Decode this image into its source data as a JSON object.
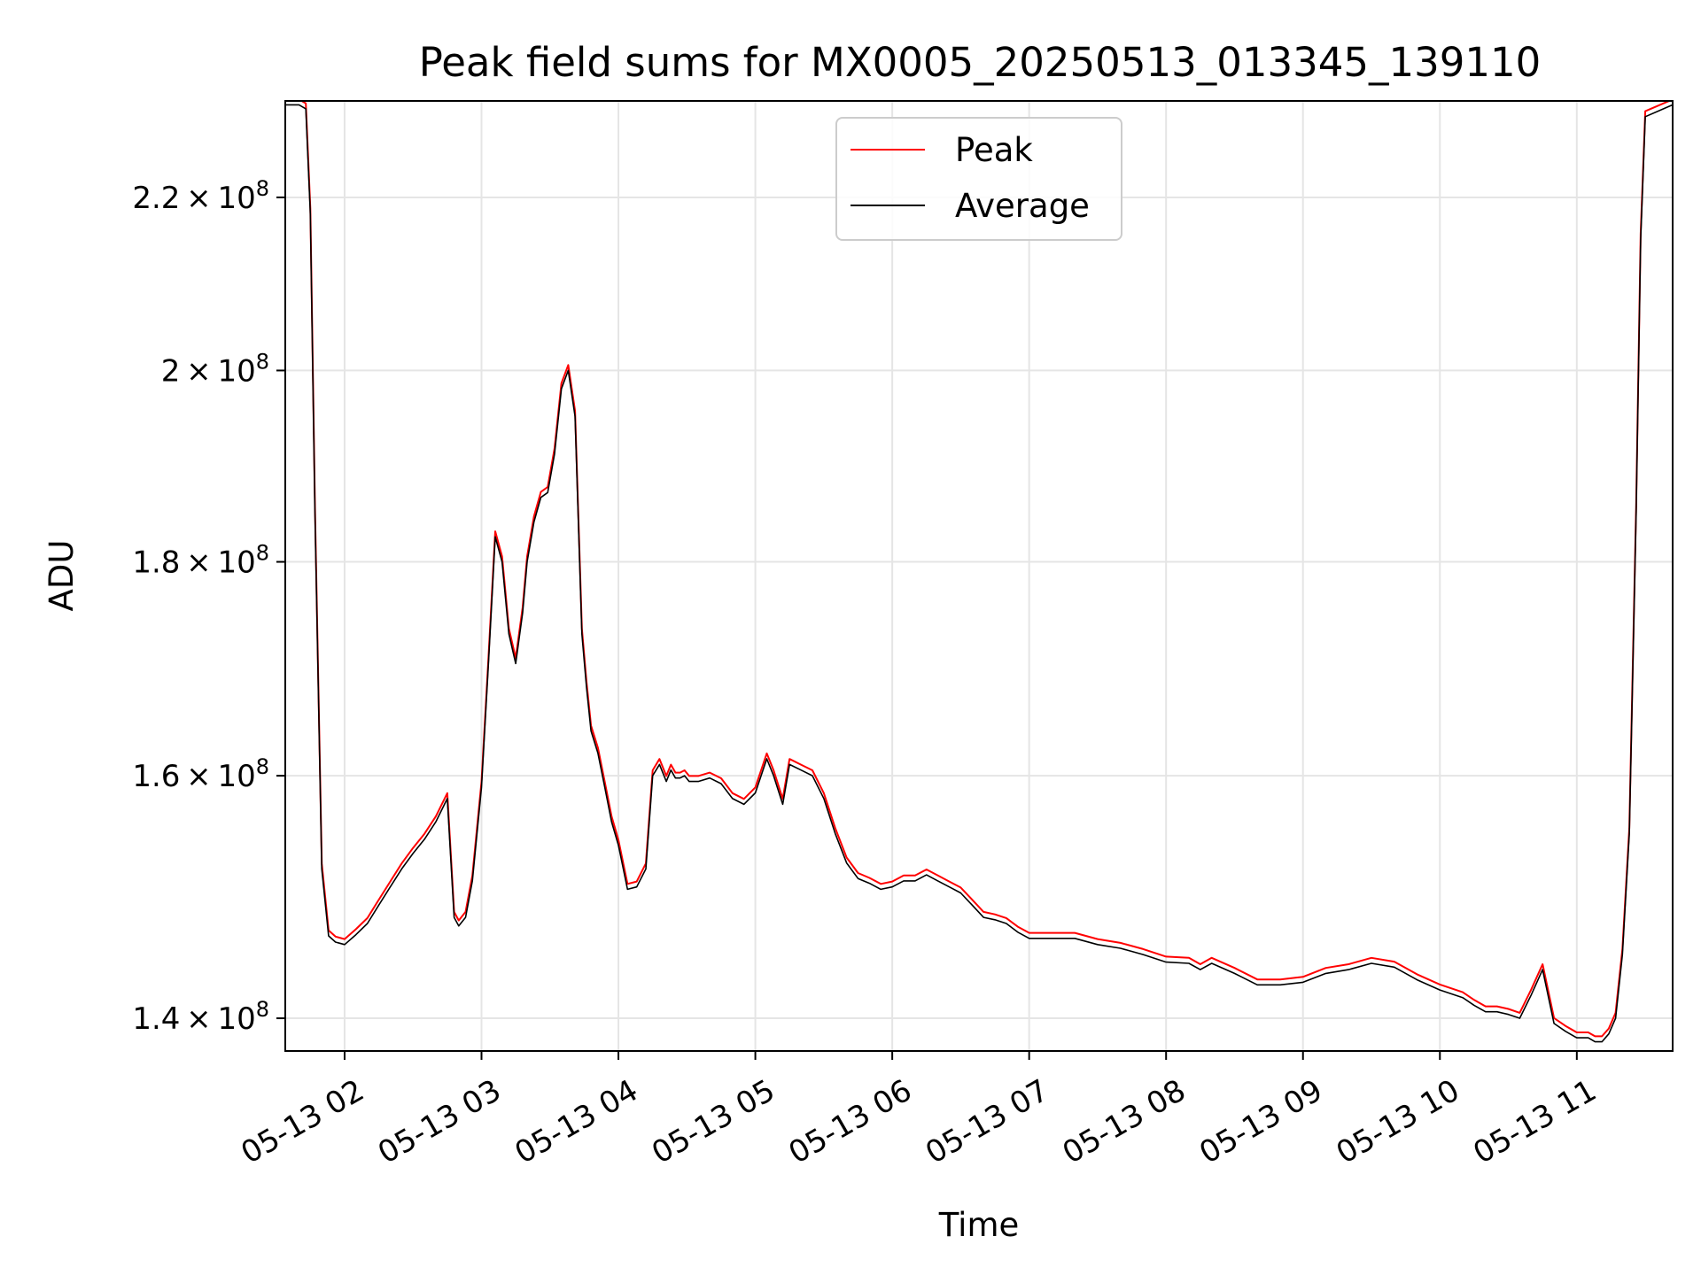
{
  "chart_data": {
    "type": "line",
    "title": "Peak field sums for MX0005_20250513_013345_139110",
    "xlabel": "Time",
    "ylabel": "ADU",
    "y_scale": "log",
    "xlim": [
      "05-13 01:34",
      "05-13 11:42"
    ],
    "ylim": [
      137500000,
      232000000
    ],
    "x_ticks": [
      "05-13 02",
      "05-13 03",
      "05-13 04",
      "05-13 05",
      "05-13 06",
      "05-13 07",
      "05-13 08",
      "05-13 09",
      "05-13 10",
      "05-13 11"
    ],
    "y_ticks": [
      {
        "value": 140000000,
        "mantissa": "1.4",
        "exp": "8"
      },
      {
        "value": 160000000,
        "mantissa": "1.6",
        "exp": "8"
      },
      {
        "value": 180000000,
        "mantissa": "1.8",
        "exp": "8"
      },
      {
        "value": 200000000,
        "mantissa": "2",
        "exp": "8"
      },
      {
        "value": 220000000,
        "mantissa": "2.2",
        "exp": "8"
      }
    ],
    "grid": true,
    "legend": {
      "placement": "upper center"
    },
    "series": [
      {
        "name": "Peak",
        "color": "#ff0000"
      },
      {
        "name": "Average",
        "color": "#000000"
      }
    ],
    "x": [
      "01:34",
      "01:40",
      "01:43",
      "01:45",
      "01:47",
      "01:50",
      "01:53",
      "01:56",
      "02:00",
      "02:05",
      "02:10",
      "02:15",
      "02:20",
      "02:25",
      "02:30",
      "02:35",
      "02:40",
      "02:45",
      "02:48",
      "02:50",
      "02:53",
      "02:56",
      "03:00",
      "03:03",
      "03:06",
      "03:09",
      "03:12",
      "03:15",
      "03:18",
      "03:20",
      "03:23",
      "03:26",
      "03:29",
      "03:32",
      "03:35",
      "03:38",
      "03:41",
      "03:44",
      "03:46",
      "03:48",
      "03:51",
      "03:54",
      "03:57",
      "04:00",
      "04:04",
      "04:08",
      "04:12",
      "04:15",
      "04:18",
      "04:21",
      "04:23",
      "04:25",
      "04:27",
      "04:29",
      "04:31",
      "04:33",
      "04:35",
      "04:40",
      "04:45",
      "04:50",
      "04:55",
      "05:00",
      "05:05",
      "05:08",
      "05:12",
      "05:15",
      "05:20",
      "05:25",
      "05:30",
      "05:35",
      "05:40",
      "05:45",
      "05:50",
      "05:55",
      "06:00",
      "06:05",
      "06:10",
      "06:15",
      "06:20",
      "06:25",
      "06:30",
      "06:35",
      "06:40",
      "06:45",
      "06:50",
      "06:55",
      "07:00",
      "07:10",
      "07:20",
      "07:30",
      "07:40",
      "07:50",
      "08:00",
      "08:10",
      "08:15",
      "08:20",
      "08:30",
      "08:40",
      "08:50",
      "09:00",
      "09:10",
      "09:20",
      "09:30",
      "09:40",
      "09:50",
      "10:00",
      "10:10",
      "10:15",
      "10:20",
      "10:25",
      "10:30",
      "10:35",
      "10:40",
      "10:45",
      "10:50",
      "10:55",
      "11:00",
      "11:05",
      "11:08",
      "11:11",
      "11:14",
      "11:17",
      "11:20",
      "11:23",
      "11:26",
      "11:28",
      "11:30",
      "11:42"
    ],
    "values": [
      231500000,
      231500000,
      231000000,
      218000000,
      185000000,
      152000000,
      146500000,
      146000000,
      145800000,
      146600000,
      147500000,
      149000000,
      150500000,
      152000000,
      153300000,
      154500000,
      156000000,
      158000000,
      148000000,
      147300000,
      148000000,
      151000000,
      159000000,
      170000000,
      182500000,
      180000000,
      173000000,
      170200000,
      175000000,
      180000000,
      184000000,
      186500000,
      187000000,
      191000000,
      198000000,
      200000000,
      195000000,
      173000000,
      168000000,
      164000000,
      162000000,
      159000000,
      156000000,
      154000000,
      150300000,
      150500000,
      152000000,
      160000000,
      161000000,
      159500000,
      160500000,
      159800000,
      159800000,
      160000000,
      159500000,
      159500000,
      159500000,
      159800000,
      159300000,
      158000000,
      157500000,
      158500000,
      161500000,
      160000000,
      157500000,
      161000000,
      160500000,
      160000000,
      158000000,
      155000000,
      152500000,
      151200000,
      150800000,
      150300000,
      150500000,
      151000000,
      151000000,
      151500000,
      151000000,
      150500000,
      150000000,
      149000000,
      148000000,
      147800000,
      147500000,
      146800000,
      146300000,
      146300000,
      146300000,
      145800000,
      145500000,
      145000000,
      144400000,
      144300000,
      143800000,
      144300000,
      143500000,
      142600000,
      142600000,
      142800000,
      143500000,
      143800000,
      144300000,
      144000000,
      143000000,
      142200000,
      141600000,
      141000000,
      140500000,
      140500000,
      140300000,
      140000000,
      141800000,
      143800000,
      139600000,
      139000000,
      138500000,
      138500000,
      138200000,
      138200000,
      138800000,
      140000000,
      145000000,
      155000000,
      185000000,
      215000000,
      230000000,
      231500000
    ]
  }
}
